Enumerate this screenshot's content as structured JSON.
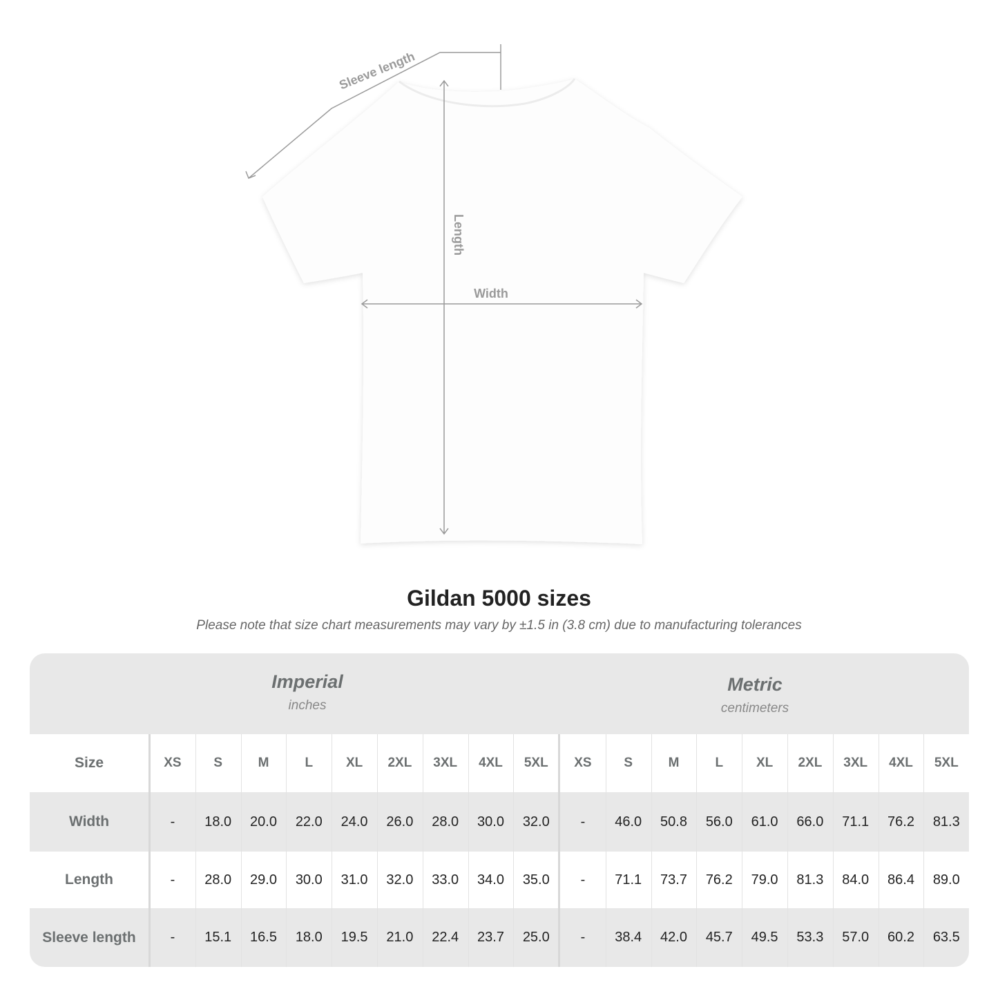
{
  "diagram": {
    "labels": {
      "sleeve_length": "Sleeve length",
      "length": "Length",
      "width": "Width"
    }
  },
  "title": "Gildan 5000 sizes",
  "subtitle": "Please note that size chart measurements may vary by ±1.5 in (3.8 cm) due to manufacturing tolerances",
  "table": {
    "imperial": {
      "name": "Imperial",
      "unit": "inches"
    },
    "metric": {
      "name": "Metric",
      "unit": "centimeters"
    },
    "size_label": "Size",
    "sizes": [
      "XS",
      "S",
      "M",
      "L",
      "XL",
      "2XL",
      "3XL",
      "4XL",
      "5XL"
    ],
    "rows": [
      {
        "label": "Width",
        "imperial": [
          "-",
          "18.0",
          "20.0",
          "22.0",
          "24.0",
          "26.0",
          "28.0",
          "30.0",
          "32.0"
        ],
        "metric": [
          "-",
          "46.0",
          "50.8",
          "56.0",
          "61.0",
          "66.0",
          "71.1",
          "76.2",
          "81.3"
        ]
      },
      {
        "label": "Length",
        "imperial": [
          "-",
          "28.0",
          "29.0",
          "30.0",
          "31.0",
          "32.0",
          "33.0",
          "34.0",
          "35.0"
        ],
        "metric": [
          "-",
          "71.1",
          "73.7",
          "76.2",
          "79.0",
          "81.3",
          "84.0",
          "86.4",
          "89.0"
        ]
      },
      {
        "label": "Sleeve length",
        "imperial": [
          "-",
          "15.1",
          "16.5",
          "18.0",
          "19.5",
          "21.0",
          "22.4",
          "23.7",
          "25.0"
        ],
        "metric": [
          "-",
          "38.4",
          "42.0",
          "45.7",
          "49.5",
          "53.3",
          "57.0",
          "60.2",
          "63.5"
        ]
      }
    ]
  },
  "colors": {
    "band": "#e8e8e8",
    "header_text": "#6b6f70",
    "measure_line": "#9a9a9a"
  }
}
